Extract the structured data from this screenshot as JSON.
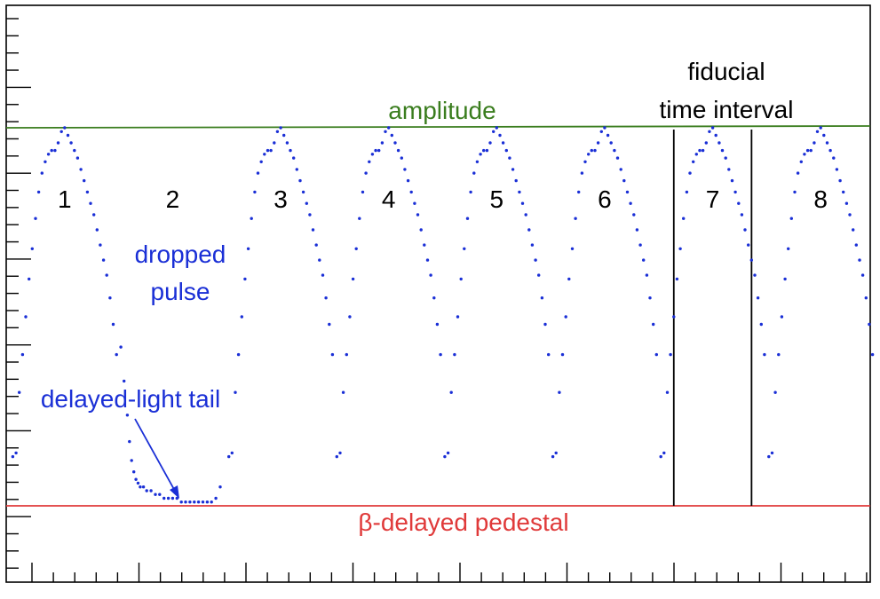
{
  "chart_data": {
    "type": "scatter",
    "title": "",
    "xlabel": "",
    "ylabel": "",
    "xlim": [
      0,
      8
    ],
    "ylim": [
      -0.05,
      1.1
    ],
    "grid": false,
    "legend": "none",
    "colors": {
      "points": "#1a2fd6",
      "amplitude_line": "#3a7d1e",
      "pedestal_line": "#e03a3a",
      "interval_lines": "#000000",
      "frame": "#000000"
    },
    "reference_lines": {
      "amplitude": {
        "label": "amplitude",
        "y": 1.0
      },
      "pedestal": {
        "label": "β-delayed pedestal",
        "y": 0.0
      }
    },
    "fiducial_interval": {
      "label_line1": "fiducial",
      "label_line2": "time interval",
      "x_start": 6.14,
      "x_end": 6.86
    },
    "pulses": [
      {
        "label": "1",
        "t0": 0.0,
        "dropped": false
      },
      {
        "label": "2",
        "t0": 1.0,
        "dropped": true
      },
      {
        "label": "3",
        "t0": 2.0,
        "dropped": false
      },
      {
        "label": "4",
        "t0": 3.0,
        "dropped": false
      },
      {
        "label": "5",
        "t0": 4.0,
        "dropped": false
      },
      {
        "label": "6",
        "t0": 5.0,
        "dropped": false
      },
      {
        "label": "7",
        "t0": 6.0,
        "dropped": false
      },
      {
        "label": "8",
        "t0": 7.0,
        "dropped": false
      }
    ],
    "pulse_shape": {
      "t": [
        0.02,
        0.05,
        0.08,
        0.11,
        0.14,
        0.17,
        0.2,
        0.23,
        0.26,
        0.29,
        0.32,
        0.35,
        0.38,
        0.41,
        0.44,
        0.47,
        0.5,
        0.53,
        0.56,
        0.59,
        0.62,
        0.65,
        0.68,
        0.71,
        0.74,
        0.77,
        0.8,
        0.83,
        0.86,
        0.89,
        0.92,
        0.95,
        0.98
      ],
      "y": [
        0.13,
        0.14,
        0.3,
        0.4,
        0.5,
        0.6,
        0.68,
        0.76,
        0.83,
        0.88,
        0.91,
        0.93,
        0.94,
        0.94,
        0.96,
        0.99,
        1.0,
        0.98,
        0.96,
        0.94,
        0.92,
        0.89,
        0.86,
        0.83,
        0.8,
        0.77,
        0.73,
        0.69,
        0.65,
        0.61,
        0.55,
        0.48,
        0.4
      ]
    },
    "dropped_tail": {
      "t": [
        1.02,
        1.05,
        1.08,
        1.1,
        1.12,
        1.14,
        1.16,
        1.18,
        1.2,
        1.23,
        1.26,
        1.3,
        1.34,
        1.38,
        1.42,
        1.46,
        1.5,
        1.54,
        1.58,
        1.62,
        1.66,
        1.7,
        1.74,
        1.78,
        1.82,
        1.86,
        1.9,
        1.94
      ],
      "y": [
        0.42,
        0.33,
        0.24,
        0.17,
        0.12,
        0.09,
        0.07,
        0.06,
        0.05,
        0.05,
        0.04,
        0.04,
        0.03,
        0.03,
        0.02,
        0.02,
        0.02,
        0.02,
        0.01,
        0.01,
        0.01,
        0.01,
        0.01,
        0.01,
        0.01,
        0.01,
        0.02,
        0.05
      ]
    },
    "annotations": {
      "dropped_pulse_line1": "dropped",
      "dropped_pulse_line2": "pulse",
      "delayed_light_tail": "delayed-light tail"
    }
  }
}
